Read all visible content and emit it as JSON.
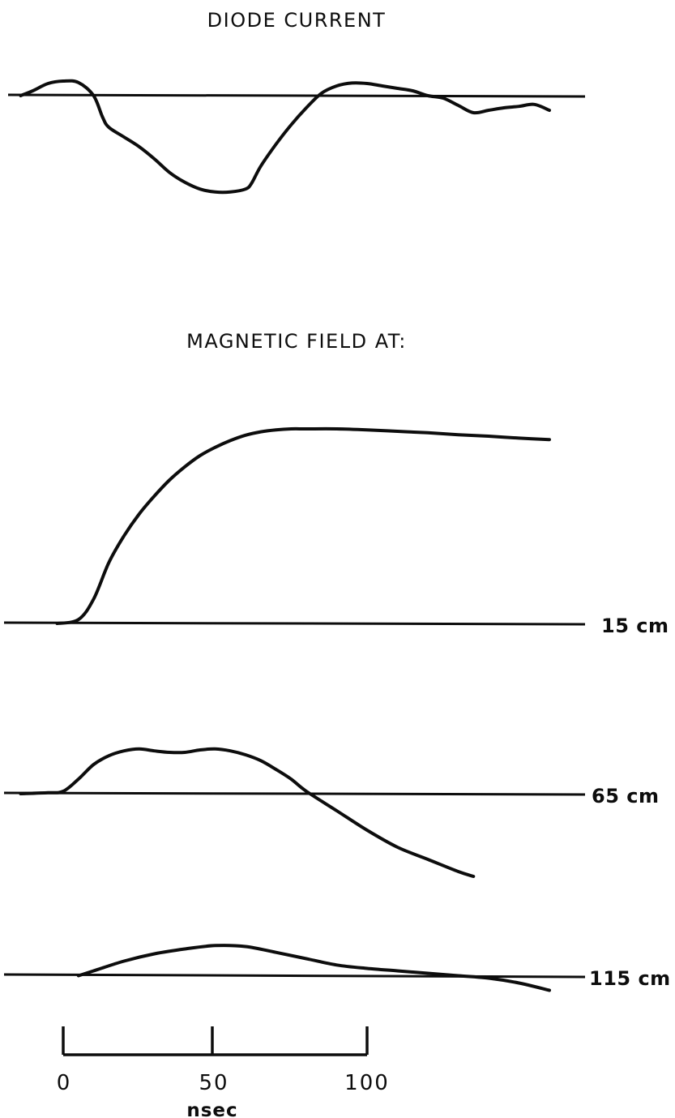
{
  "chart_data": [
    {
      "type": "line",
      "title": "DIODE CURRENT",
      "series": [
        {
          "x": [
            -14,
            -10,
            -5,
            0,
            5,
            10,
            13,
            15,
            20,
            25,
            30,
            35,
            40,
            45,
            50,
            55,
            60,
            62,
            65,
            70,
            75,
            80,
            85,
            90,
            95,
            100,
            105,
            110,
            115,
            120,
            125,
            130,
            135,
            140,
            145,
            150,
            155,
            160
          ],
          "y": [
            0.0,
            0.1,
            0.25,
            0.3,
            0.27,
            0.0,
            -0.45,
            -0.65,
            -0.85,
            -1.05,
            -1.3,
            -1.58,
            -1.78,
            -1.92,
            -1.98,
            -1.98,
            -1.92,
            -1.8,
            -1.45,
            -1.0,
            -0.6,
            -0.25,
            0.05,
            0.2,
            0.26,
            0.25,
            0.2,
            0.15,
            0.1,
            0.0,
            -0.05,
            -0.2,
            -0.35,
            -0.3,
            -0.25,
            -0.22,
            -0.18,
            -0.3
          ]
        }
      ]
    },
    {
      "type": "line",
      "title": "MAGNETIC FIELD AT:",
      "series": [
        {
          "name": "15 cm",
          "x": [
            -2,
            5,
            10,
            15,
            20,
            25,
            30,
            35,
            40,
            45,
            50,
            55,
            60,
            65,
            70,
            75,
            80,
            90,
            100,
            110,
            120,
            130,
            140,
            150,
            160
          ],
          "y": [
            0.0,
            0.08,
            0.5,
            1.25,
            1.8,
            2.25,
            2.62,
            2.95,
            3.22,
            3.45,
            3.62,
            3.76,
            3.87,
            3.94,
            3.98,
            4.0,
            4.0,
            4.0,
            3.98,
            3.95,
            3.92,
            3.88,
            3.85,
            3.81,
            3.78
          ]
        },
        {
          "name": "65 cm",
          "x": [
            -14,
            -5,
            0,
            5,
            10,
            15,
            20,
            25,
            30,
            35,
            40,
            45,
            50,
            55,
            60,
            65,
            70,
            75,
            80,
            90,
            100,
            110,
            120,
            130,
            135
          ],
          "y": [
            0.0,
            0.02,
            0.05,
            0.3,
            0.6,
            0.78,
            0.88,
            0.92,
            0.88,
            0.85,
            0.85,
            0.9,
            0.92,
            0.88,
            0.8,
            0.68,
            0.5,
            0.3,
            0.05,
            -0.35,
            -0.75,
            -1.1,
            -1.35,
            -1.6,
            -1.7
          ]
        },
        {
          "name": "115 cm",
          "x": [
            5,
            10,
            20,
            30,
            40,
            50,
            60,
            70,
            80,
            90,
            100,
            110,
            120,
            130,
            140,
            150,
            160
          ],
          "y": [
            0.0,
            0.1,
            0.3,
            0.45,
            0.55,
            0.62,
            0.6,
            0.48,
            0.35,
            0.22,
            0.15,
            0.1,
            0.05,
            0.0,
            -0.05,
            -0.15,
            -0.3
          ]
        }
      ]
    }
  ],
  "labels": {
    "diode_title": "DIODE CURRENT",
    "field_title": "MAGNETIC FIELD AT:",
    "trace_15": "15 cm",
    "trace_65": "65 cm",
    "trace_115": "115 cm"
  },
  "scale_bar": {
    "ticks": [
      0,
      50,
      100
    ],
    "tick_labels": [
      "0",
      "50",
      "100"
    ],
    "unit": "nsec"
  }
}
